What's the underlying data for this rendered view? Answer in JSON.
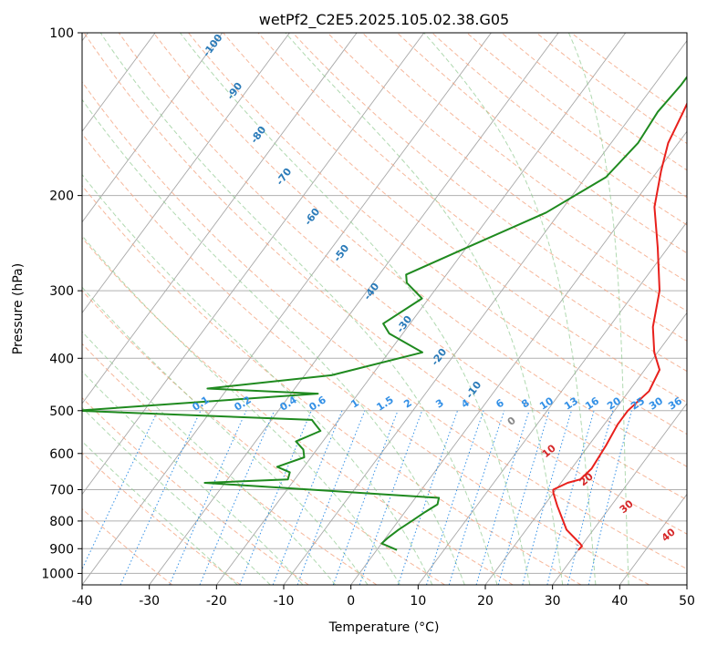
{
  "chart_data": {
    "type": "line",
    "subtype": "skew-T log-P diagram",
    "title": "wetPf2_C2E5.2025.105.02.38.G05",
    "xlabel": "Temperature (°C)",
    "ylabel": "Pressure (hPa)",
    "xlim": [
      -40,
      50
    ],
    "ylim": [
      1050,
      100
    ],
    "y_scale": "log",
    "grid": true,
    "x_ticks": [
      "-40",
      "-30",
      "-20",
      "-10",
      "0",
      "10",
      "20",
      "30",
      "40",
      "50"
    ],
    "y_ticks": [
      "100",
      "200",
      "300",
      "400",
      "500",
      "600",
      "700",
      "800",
      "900",
      "1000"
    ],
    "isotherm_labels": [
      "-100",
      "-90",
      "-80",
      "-70",
      "-60",
      "-50",
      "-40",
      "-30",
      "-20",
      "-10"
    ],
    "mixing_ratio_labels": [
      "0.1",
      "0.2",
      "0.4",
      "0.6",
      "1",
      "1.5",
      "2",
      "3",
      "4",
      "6",
      "8",
      "10",
      "13",
      "16",
      "20",
      "25",
      "30",
      "36"
    ],
    "dry_adiabat_labels": [
      "0",
      "10",
      "20",
      "30",
      "40"
    ],
    "colors": {
      "temperature": "#e8201c",
      "dewpoint": "#1f8a1f",
      "isotherm": "#2b7bb9",
      "mixing_ratio": "#3390e6",
      "dry_adiabat": "#d62728",
      "zero_adiabat": "#888888"
    },
    "series": [
      {
        "id": "temperature",
        "x": [
          30,
          30.1,
          29.5,
          26,
          22,
          20,
          19.6,
          21,
          22.5,
          23,
          22.6,
          22,
          22,
          23,
          22.2,
          19.5,
          16.5,
          13.5,
          8.5,
          3.5,
          0.5,
          -1.5,
          -2.7,
          -3.8,
          -4.3,
          -4.8,
          -4.3
        ],
        "y": [
          905,
          890,
          880,
          830,
          750,
          710,
          700,
          680,
          670,
          640,
          580,
          530,
          500,
          460,
          420,
          390,
          350,
          300,
          250,
          210,
          180,
          160,
          140,
          125,
          115,
          108,
          100
        ]
      },
      {
        "id": "dewpoint",
        "x": [
          3,
          0,
          0.3,
          1,
          2,
          3,
          4,
          3.5,
          -33,
          -21,
          -21.5,
          -24,
          -21,
          -22,
          -24,
          -21.5,
          -23,
          -24,
          -60,
          -26,
          -43,
          -26,
          -15,
          -22,
          -24,
          -21,
          -25,
          -26,
          -20,
          -12,
          -7,
          -6,
          -6.5,
          -6,
          -6,
          -5.3,
          -5.5,
          -5.3
        ],
        "y": [
          905,
          880,
          860,
          830,
          800,
          770,
          745,
          725,
          680,
          670,
          650,
          635,
          610,
          590,
          570,
          545,
          530,
          520,
          500,
          465,
          455,
          430,
          390,
          360,
          345,
          310,
          290,
          280,
          250,
          215,
          185,
          160,
          140,
          125,
          112,
          105,
          102,
          100
        ]
      }
    ]
  }
}
